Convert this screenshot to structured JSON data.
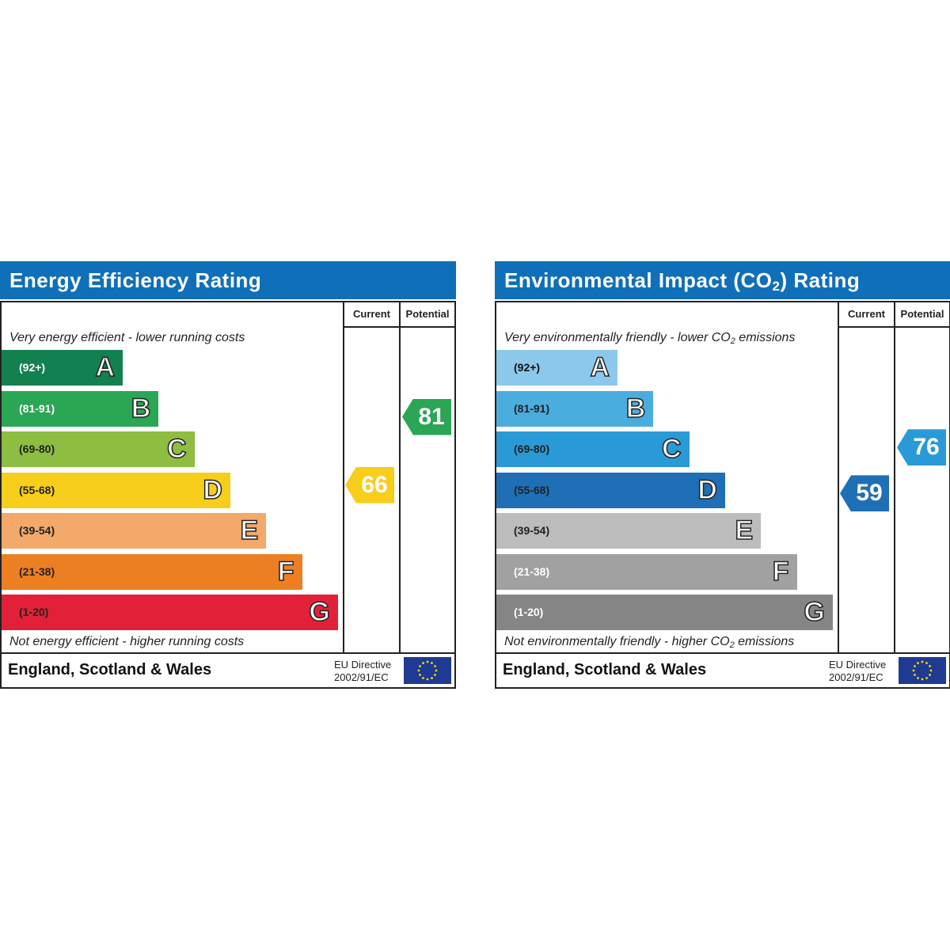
{
  "chart_data": [
    {
      "type": "bar",
      "title": "Energy Efficiency Rating",
      "column_headers": [
        "Current",
        "Potential"
      ],
      "top_caption": "Very energy efficient - lower running costs",
      "bottom_caption": "Not energy efficient - higher running costs",
      "bands": [
        {
          "letter": "A",
          "range": "(92+)",
          "color": "#138050",
          "text_color": "#ffffff"
        },
        {
          "letter": "B",
          "range": "(81-91)",
          "color": "#2aa654",
          "text_color": "#ffffff"
        },
        {
          "letter": "C",
          "range": "(69-80)",
          "color": "#8dbd41",
          "text_color": "#222222"
        },
        {
          "letter": "D",
          "range": "(55-68)",
          "color": "#f6ce1b",
          "text_color": "#222222"
        },
        {
          "letter": "E",
          "range": "(39-54)",
          "color": "#f2a96a",
          "text_color": "#222222"
        },
        {
          "letter": "F",
          "range": "(21-38)",
          "color": "#ec7f22",
          "text_color": "#222222"
        },
        {
          "letter": "G",
          "range": "(1-20)",
          "color": "#e22139",
          "text_color": "#222222"
        }
      ],
      "current": {
        "value": "66",
        "band": "D",
        "color": "#f6ce1b"
      },
      "potential": {
        "value": "81",
        "band": "B",
        "color": "#2aa654"
      },
      "footer": {
        "country": "England, Scotland & Wales",
        "directive_line1": "EU Directive",
        "directive_line2": "2002/91/EC"
      }
    },
    {
      "type": "bar",
      "title": "Environmental Impact (CO",
      "title_sub": "2",
      "title_suffix": ") Rating",
      "column_headers": [
        "Current",
        "Potential"
      ],
      "top_caption": "Very environmentally friendly - lower CO",
      "top_caption_sub": "2",
      "top_caption_suffix": " emissions",
      "bottom_caption": "Not environmentally friendly - higher CO",
      "bottom_caption_sub": "2",
      "bottom_caption_suffix": " emissions",
      "bands": [
        {
          "letter": "A",
          "range": "(92+)",
          "color": "#8cc8ec",
          "text_color": "#111111"
        },
        {
          "letter": "B",
          "range": "(81-91)",
          "color": "#4badde",
          "text_color": "#222222"
        },
        {
          "letter": "C",
          "range": "(69-80)",
          "color": "#2a9ad6",
          "text_color": "#222222"
        },
        {
          "letter": "D",
          "range": "(55-68)",
          "color": "#1f6fb6",
          "text_color": "#222222"
        },
        {
          "letter": "E",
          "range": "(39-54)",
          "color": "#bcbcbc",
          "text_color": "#222222"
        },
        {
          "letter": "F",
          "range": "(21-38)",
          "color": "#a1a1a1",
          "text_color": "#ffffff"
        },
        {
          "letter": "G",
          "range": "(1-20)",
          "color": "#858585",
          "text_color": "#ffffff"
        }
      ],
      "current": {
        "value": "59",
        "band": "D",
        "color": "#1f6fb6"
      },
      "potential": {
        "value": "76",
        "band": "C",
        "color": "#2a9ad6"
      },
      "footer": {
        "country": "England, Scotland & Wales",
        "directive_line1": "EU Directive",
        "directive_line2": "2002/91/EC"
      }
    }
  ]
}
